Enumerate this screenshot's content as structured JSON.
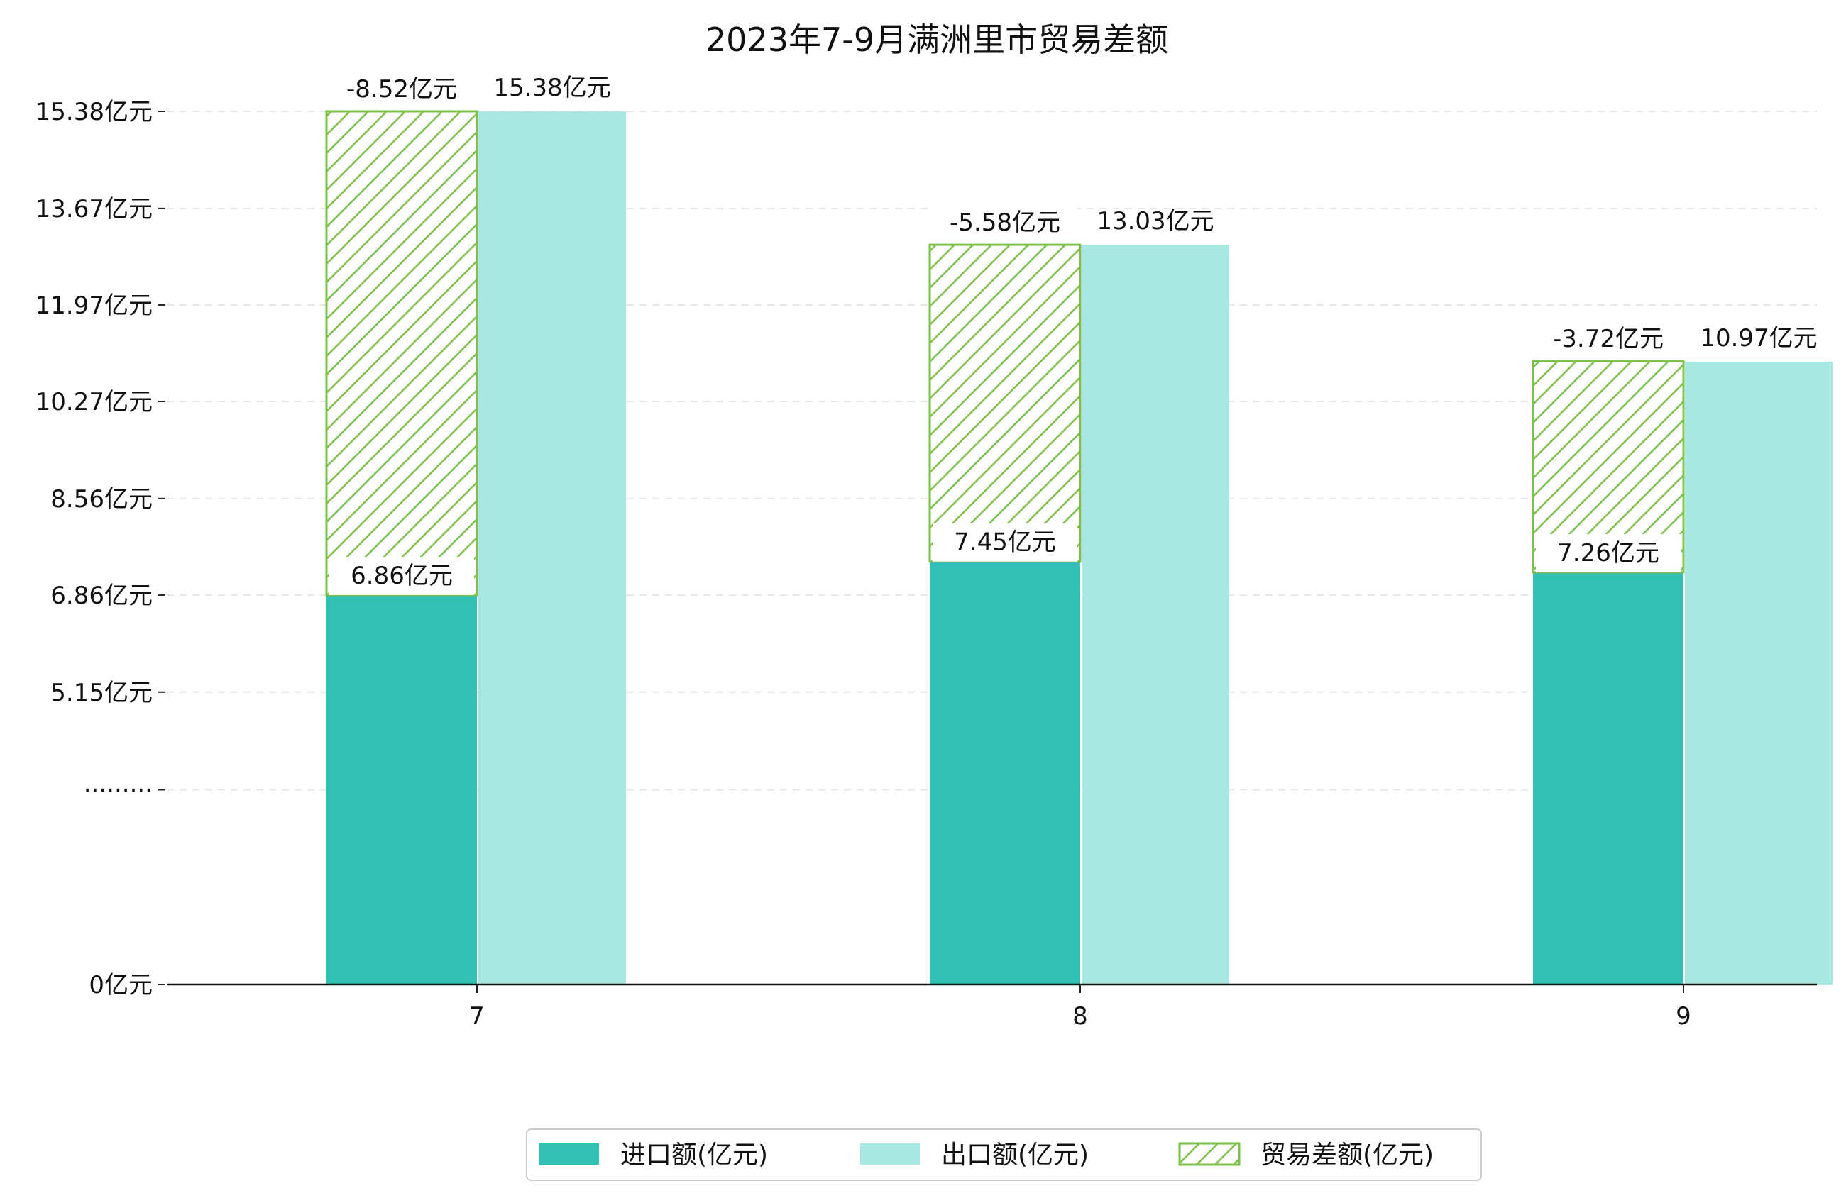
{
  "chart_data": {
    "type": "bar",
    "title": "2023年7-9月满洲里市贸易差额",
    "categories": [
      "7",
      "8",
      "9"
    ],
    "series": [
      {
        "name": "进口额(亿元)",
        "values": [
          6.86,
          7.45,
          7.26
        ],
        "labels": [
          "6.86亿元",
          "7.45亿元",
          "7.26亿元"
        ],
        "color": "#32C0B3"
      },
      {
        "name": "出口额(亿元)",
        "values": [
          15.38,
          13.03,
          10.97
        ],
        "labels": [
          "15.38亿元",
          "13.03亿元",
          "10.97亿元"
        ],
        "color": "#A8E7E2"
      },
      {
        "name": "贸易差额(亿元)",
        "values": [
          -8.52,
          -5.58,
          -3.72
        ],
        "labels": [
          "-8.52亿元",
          "-5.58亿元",
          "-3.72亿元"
        ],
        "color": "#7CBF4A",
        "hatch": true
      }
    ],
    "y_ticks": [
      {
        "value": 0,
        "label": "0亿元"
      },
      {
        "value": 3.43,
        "label": "·········"
      },
      {
        "value": 5.15,
        "label": "5.15亿元"
      },
      {
        "value": 6.86,
        "label": "6.86亿元"
      },
      {
        "value": 8.56,
        "label": "8.56亿元"
      },
      {
        "value": 10.27,
        "label": "10.27亿元"
      },
      {
        "value": 11.97,
        "label": "11.97亿元"
      },
      {
        "value": 13.67,
        "label": "13.67亿元"
      },
      {
        "value": 15.38,
        "label": "15.38亿元"
      }
    ],
    "ylim": [
      0,
      16.4
    ],
    "grid": true,
    "legend_position": "bottom-center"
  }
}
